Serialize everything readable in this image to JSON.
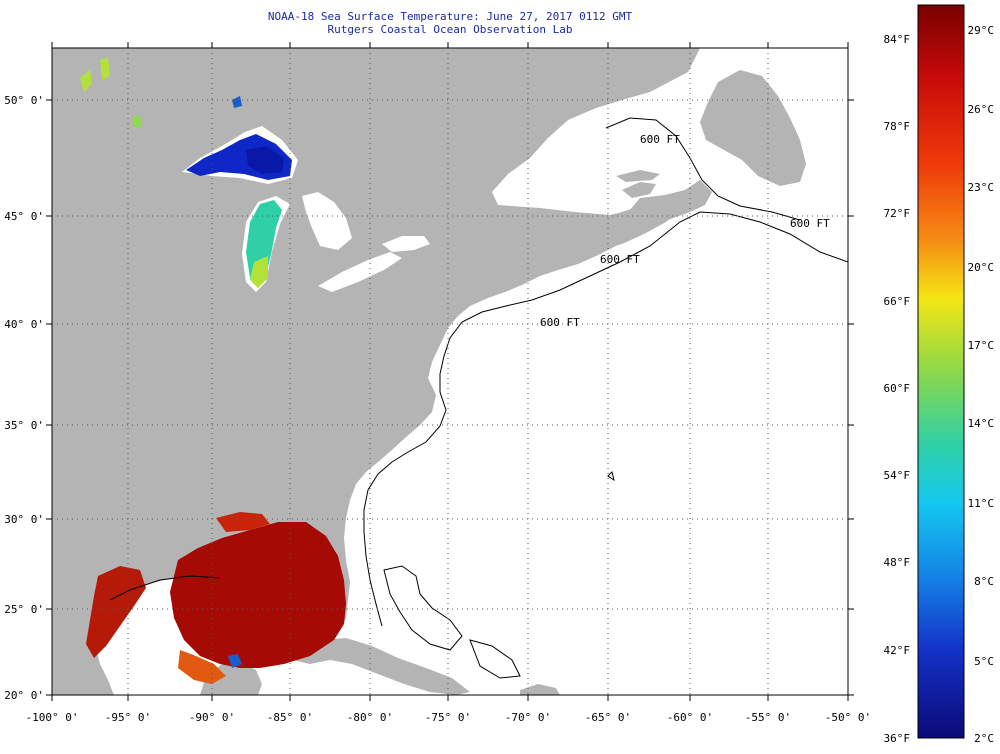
{
  "title_line1": "NOAA-18 Sea Surface Temperature:  June 27, 2017 0112 GMT",
  "title_line2": "Rutgers Coastal Ocean Observation Lab",
  "lon_ticks": [
    "-100° 0'",
    "-95° 0'",
    "-90° 0'",
    "-85° 0'",
    "-80° 0'",
    "-75° 0'",
    "-70° 0'",
    "-65° 0'",
    "-60° 0'",
    "-55° 0'",
    "-50° 0'"
  ],
  "lat_ticks": [
    "50° 0'",
    "45° 0'",
    "40° 0'",
    "35° 0'",
    "30° 0'",
    "25° 0'",
    "20° 0'"
  ],
  "contour_labels": [
    "600 FT",
    "600 FT",
    "600 FT",
    "600 FT"
  ],
  "colorbar": {
    "fahrenheit": [
      "84°F",
      "78°F",
      "72°F",
      "66°F",
      "60°F",
      "54°F",
      "48°F",
      "42°F",
      "36°F"
    ],
    "celsius": [
      "29°C",
      "26°C",
      "23°C",
      "20°C",
      "17°C",
      "14°C",
      "11°C",
      "8°C",
      "5°C",
      "2°C"
    ]
  },
  "colors": {
    "land": "#b4b4b4",
    "no_data": "#ffffff",
    "title_text": "#1a2aa6",
    "sst_warm": "#a60a05",
    "sst_cold": "#1027c8"
  }
}
